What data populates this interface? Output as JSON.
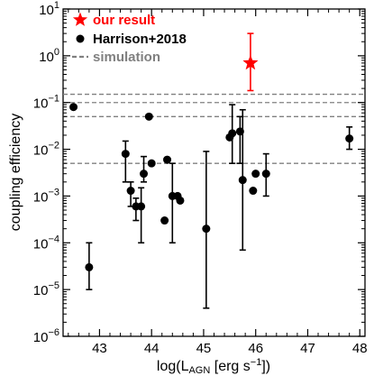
{
  "chart_data": {
    "type": "scatter",
    "xlabel": "log(L",
    "xlabel_sub": "AGN",
    "xlabel_units": " [erg s",
    "xlabel_units_sup": "−1",
    "xlabel_end": "])",
    "ylabel": "coupling efficiency",
    "xlim": [
      42.3,
      48.1
    ],
    "ylim_log10": [
      -6,
      1
    ],
    "x_ticks": [
      43,
      44,
      45,
      46,
      47,
      48
    ],
    "y_ticks": [
      {
        "exp": 1,
        "base": "10",
        "sup": "1"
      },
      {
        "exp": 0,
        "base": "10",
        "sup": "0"
      },
      {
        "exp": -1,
        "base": "10",
        "sup": "−1"
      },
      {
        "exp": -2,
        "base": "10",
        "sup": "−2"
      },
      {
        "exp": -3,
        "base": "10",
        "sup": "−3"
      },
      {
        "exp": -4,
        "base": "10",
        "sup": "−4"
      },
      {
        "exp": -5,
        "base": "10",
        "sup": "−5"
      },
      {
        "exp": -6,
        "base": "10",
        "sup": "−6"
      }
    ],
    "legend": {
      "position": "top-left",
      "entries": [
        {
          "label": "our result",
          "marker": "star",
          "color": "#ff0000"
        },
        {
          "label": "Harrison+2018",
          "marker": "circle",
          "color": "#000000"
        },
        {
          "label": "simulation",
          "marker": "dash",
          "color": "#808080"
        }
      ]
    },
    "simulation_lines": [
      0.15,
      0.1,
      0.05,
      0.005
    ],
    "series": [
      {
        "name": "our result",
        "marker": "star",
        "color": "#ff0000",
        "points": [
          {
            "x": 45.9,
            "y": 0.7,
            "ylo": 0.18,
            "yhi": 3.0
          }
        ]
      },
      {
        "name": "Harrison+2018",
        "marker": "circle",
        "color": "#000000",
        "points": [
          {
            "x": 42.5,
            "y": 0.08
          },
          {
            "x": 42.8,
            "y": 3e-05,
            "ylo": 1e-05,
            "yhi": 0.0001
          },
          {
            "x": 43.5,
            "y": 0.008,
            "ylo": 0.002,
            "yhi": 0.015
          },
          {
            "x": 43.6,
            "y": 0.0013,
            "ylo": 0.0006,
            "yhi": 0.002
          },
          {
            "x": 43.7,
            "y": 0.0006,
            "ylo": 0.0003,
            "yhi": 0.0009
          },
          {
            "x": 43.8,
            "y": 0.0006,
            "ylo": 0.0001,
            "yhi": 0.0015
          },
          {
            "x": 43.85,
            "y": 0.003,
            "ylo": 0.002,
            "yhi": 0.007
          },
          {
            "x": 43.95,
            "y": 0.05
          },
          {
            "x": 44.0,
            "y": 0.005
          },
          {
            "x": 44.25,
            "y": 0.0003
          },
          {
            "x": 44.3,
            "y": 0.006
          },
          {
            "x": 44.4,
            "y": 0.001,
            "ylo": 0.0001,
            "yhi": 0.005
          },
          {
            "x": 44.5,
            "y": 0.001
          },
          {
            "x": 44.55,
            "y": 0.0008
          },
          {
            "x": 45.05,
            "y": 0.0002,
            "ylo": 4e-06,
            "yhi": 0.009
          },
          {
            "x": 45.5,
            "y": 0.018
          },
          {
            "x": 45.55,
            "y": 0.022,
            "ylo": 0.005,
            "yhi": 0.09
          },
          {
            "x": 45.7,
            "y": 0.024,
            "ylo": 0.005,
            "yhi": 0.05
          },
          {
            "x": 45.75,
            "y": 0.0022,
            "ylo": 7e-05,
            "yhi": 0.07
          },
          {
            "x": 45.95,
            "y": 0.0013
          },
          {
            "x": 46.0,
            "y": 0.003
          },
          {
            "x": 46.2,
            "y": 0.003,
            "ylo": 0.001,
            "yhi": 0.008
          },
          {
            "x": 47.8,
            "y": 0.017,
            "ylo": 0.01,
            "yhi": 0.03
          }
        ]
      }
    ]
  }
}
